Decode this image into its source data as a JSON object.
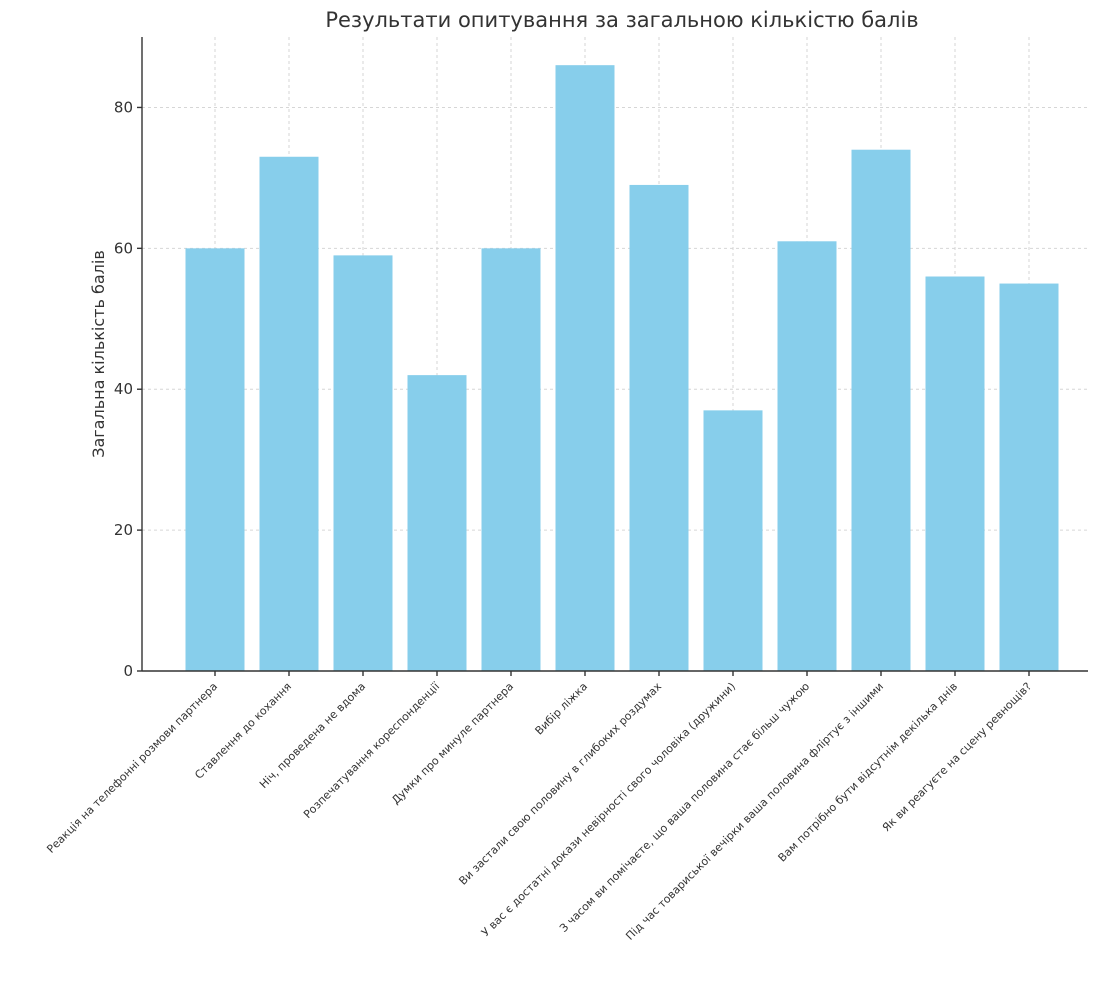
{
  "chart_data": {
    "type": "bar",
    "title": "Результати опитування за загальною кількістю балів",
    "xlabel": "",
    "ylabel": "Загальна кількість балів",
    "categories": [
      "Реакція на телефонні розмови партнера",
      "Ставлення до кохання",
      "Ніч, проведена не вдома",
      "Розпечатування кореспонденції",
      "Думки про минуле партнера",
      "Вибір ліжка",
      "Ви застали свою половину в глибоких роздумах",
      "У вас є достатні докази невірності свого чоловіка (дружини)",
      "З часом ви помічаєте, що ваша половина стає більш чужою",
      "Під час товариської вечірки ваша половина фліртує з іншими",
      "Вам потрібно бути відсутнім декілька днів",
      "Як ви реагуєте на сцену ревнощів?"
    ],
    "values": [
      60,
      73,
      59,
      42,
      60,
      86,
      69,
      37,
      61,
      74,
      56,
      55
    ],
    "ylim": [
      0,
      90
    ],
    "yticks": [
      0,
      20,
      40,
      60,
      80
    ],
    "ytick_labels": [
      "0",
      "20",
      "40",
      "60",
      "80"
    ],
    "grid": true,
    "bar_color": "#87ceeb",
    "axis_color": "#333333"
  }
}
